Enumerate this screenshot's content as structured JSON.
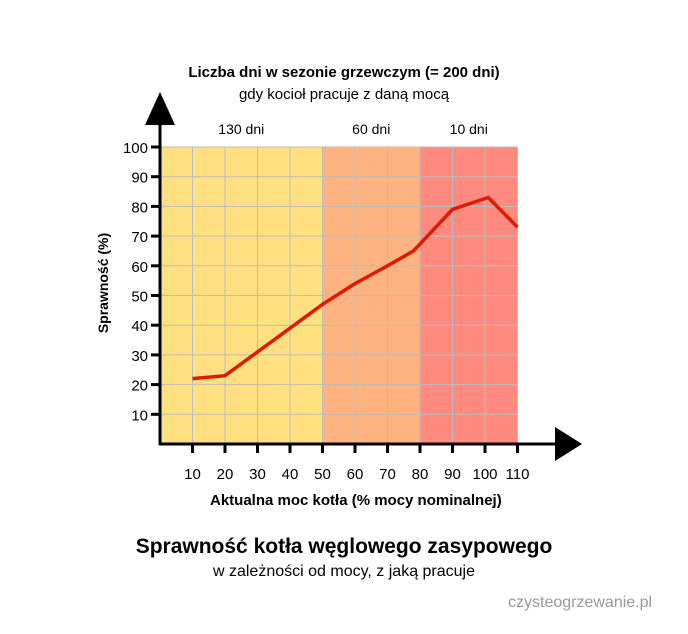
{
  "chart_data": {
    "type": "line",
    "top_title": "Liczba dni w sezonie grzewczym (= 200 dni)",
    "top_subtitle": "gdy kocioł pracuje z daną mocą",
    "bands": [
      {
        "from": 0,
        "to": 50,
        "label": "130 dni",
        "color": "#FFE080"
      },
      {
        "from": 50,
        "to": 80,
        "label": "60 dni",
        "color": "#FFB380"
      },
      {
        "from": 80,
        "to": 110,
        "label": "10 dni",
        "color": "#FF8A80"
      }
    ],
    "xlabel": "Aktualna moc kotła (% mocy nominalnej)",
    "ylabel": "Sprawność (%)",
    "xlim": [
      0,
      110
    ],
    "ylim": [
      0,
      100
    ],
    "xticks": [
      10,
      20,
      30,
      40,
      50,
      60,
      70,
      80,
      90,
      100,
      110
    ],
    "yticks": [
      10,
      20,
      30,
      40,
      50,
      60,
      70,
      80,
      90,
      100
    ],
    "grid": true,
    "line_color": "#E01A00",
    "x": [
      10,
      20,
      30,
      40,
      50,
      60,
      70,
      78,
      90,
      101,
      110
    ],
    "y": [
      22,
      23,
      31,
      39,
      47,
      54,
      60,
      65,
      79,
      83,
      73
    ],
    "title": "Sprawność kotła węglowego zasypowego",
    "subtitle": "w zależności od mocy, z jaką pracuje"
  },
  "watermark": "czysteogrzewanie.pl"
}
